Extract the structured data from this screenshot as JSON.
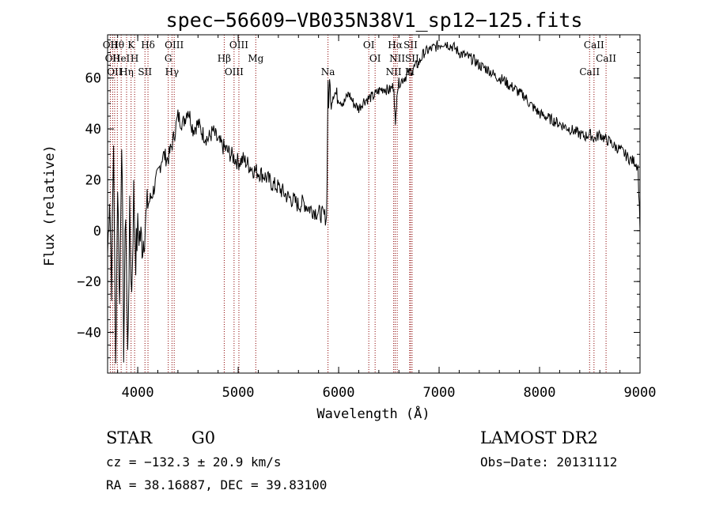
{
  "chart_data": {
    "type": "line",
    "title": "spec−56609−VB035N38V1_sp12−125.fits",
    "xlabel": "Wavelength (Å)",
    "ylabel": "Flux (relative)",
    "xlim": [
      3700,
      9000
    ],
    "ylim": [
      -56,
      77
    ],
    "xticks": [
      4000,
      5000,
      6000,
      7000,
      8000,
      9000
    ],
    "yticks": [
      -40,
      -20,
      0,
      20,
      40,
      60
    ],
    "grid": false,
    "series": [
      {
        "x": [
          3700,
          3720,
          3740,
          3760,
          3780,
          3800,
          3820,
          3840,
          3860,
          3880,
          3900,
          3920,
          3940,
          3960,
          3980,
          4000,
          4050,
          4100,
          4150,
          4200,
          4250,
          4300,
          4350,
          4400,
          4450,
          4500,
          4550,
          4600,
          4650,
          4700,
          4750,
          4800,
          4850,
          4900,
          4950,
          5000,
          5050,
          5100,
          5150,
          5200,
          5250,
          5300,
          5350,
          5400,
          5450,
          5500,
          5550,
          5600,
          5650,
          5700,
          5750,
          5800,
          5850,
          5880,
          5895,
          5900,
          5910,
          5920,
          5950,
          6000,
          6050,
          6100,
          6150,
          6200,
          6250,
          6300,
          6350,
          6400,
          6450,
          6500,
          6550,
          6565,
          6580,
          6600,
          6650,
          6700,
          6750,
          6800,
          6850,
          6900,
          6950,
          7000,
          7050,
          7100,
          7150,
          7200,
          7250,
          7300,
          7350,
          7400,
          7450,
          7500,
          7550,
          7600,
          7650,
          7700,
          7750,
          7800,
          7850,
          7900,
          7950,
          8000,
          8050,
          8100,
          8150,
          8200,
          8250,
          8300,
          8350,
          8400,
          8450,
          8500,
          8550,
          8600,
          8650,
          8700,
          8750,
          8800,
          8850,
          8900,
          8950,
          8980,
          9000
        ],
        "y": [
          -10,
          15,
          -20,
          35,
          -55,
          20,
          -30,
          40,
          -45,
          10,
          -50,
          5,
          -25,
          15,
          -10,
          0,
          -5,
          10,
          15,
          22,
          30,
          28,
          35,
          45,
          42,
          48,
          40,
          42,
          38,
          36,
          39,
          35,
          33,
          31,
          29,
          27,
          28,
          26,
          24,
          23,
          22,
          20,
          18,
          17,
          15,
          13,
          12,
          10,
          11,
          9,
          8,
          7,
          6,
          5,
          60,
          45,
          62,
          50,
          55,
          52,
          50,
          54,
          50,
          48,
          51,
          52,
          53,
          55,
          56,
          55,
          57,
          40,
          55,
          58,
          60,
          62,
          64,
          66,
          70,
          71,
          72,
          73,
          74,
          73,
          72,
          70,
          69,
          68,
          67,
          65,
          64,
          63,
          61,
          60,
          59,
          57,
          56,
          54,
          53,
          50,
          48,
          46,
          45,
          44,
          43,
          42,
          41,
          40,
          39,
          38,
          37,
          38,
          36,
          38,
          36,
          35,
          33,
          32,
          30,
          28,
          27,
          25,
          0
        ]
      }
    ],
    "lines": [
      {
        "wl": 3727,
        "labels": [
          "OII"
        ]
      },
      {
        "wl": 3750,
        "labels": [
          "OII"
        ]
      },
      {
        "wl": 3770,
        "labels": [
          "OII"
        ]
      },
      {
        "wl": 3797,
        "labels": [
          "Hθ"
        ]
      },
      {
        "wl": 3835,
        "labels": [
          "HeI"
        ]
      },
      {
        "wl": 3889,
        "labels": [
          "Hη"
        ]
      },
      {
        "wl": 3934,
        "labels": [
          "K"
        ]
      },
      {
        "wl": 3969,
        "labels": [
          "H"
        ]
      },
      {
        "wl": 4072,
        "labels": [
          "SII"
        ]
      },
      {
        "wl": 4102,
        "labels": [
          "Hδ"
        ]
      },
      {
        "wl": 4304,
        "labels": [
          "G"
        ]
      },
      {
        "wl": 4341,
        "labels": [
          "Hγ"
        ]
      },
      {
        "wl": 4363,
        "labels": [
          "OIII"
        ]
      },
      {
        "wl": 4861,
        "labels": [
          "Hβ"
        ]
      },
      {
        "wl": 4959,
        "labels": [
          "OIII"
        ]
      },
      {
        "wl": 5007,
        "labels": [
          "OIII"
        ]
      },
      {
        "wl": 5175,
        "labels": [
          "Mg"
        ]
      },
      {
        "wl": 5894,
        "labels": [
          "Na"
        ]
      },
      {
        "wl": 6300,
        "labels": [
          "OI"
        ]
      },
      {
        "wl": 6363,
        "labels": [
          "OI"
        ]
      },
      {
        "wl": 6548,
        "labels": [
          "NII"
        ]
      },
      {
        "wl": 6563,
        "labels": [
          "Hα"
        ]
      },
      {
        "wl": 6583,
        "labels": [
          "NII"
        ]
      },
      {
        "wl": 6707,
        "labels": [
          "Li"
        ]
      },
      {
        "wl": 6716,
        "labels": [
          "SII"
        ]
      },
      {
        "wl": 6731,
        "labels": [
          "SII"
        ]
      },
      {
        "wl": 8498,
        "labels": [
          "CaII"
        ]
      },
      {
        "wl": 8542,
        "labels": [
          "CaII"
        ]
      },
      {
        "wl": 8662,
        "labels": [
          "CaII"
        ]
      }
    ],
    "line_color": "#8b0000"
  },
  "info": {
    "object_class": "STAR",
    "subclass": "G0",
    "survey": "LAMOST DR2",
    "cz_text": "cz = −132.3 ± 20.9 km/s",
    "obs_date_text": "Obs−Date: 20131112",
    "radec_text": "RA =  38.16887, DEC =  39.83100"
  }
}
